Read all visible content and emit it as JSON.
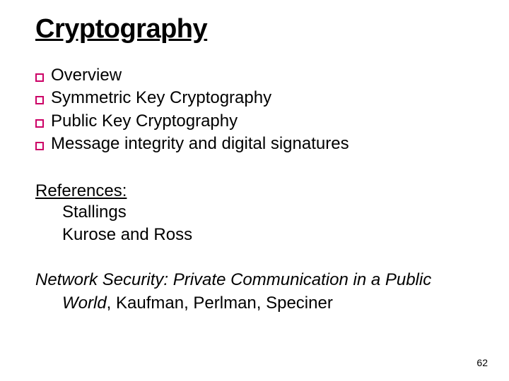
{
  "slide": {
    "title": "Cryptography",
    "bullets": [
      "Overview",
      "Symmetric Key Cryptography",
      "Public Key Cryptography",
      "Message integrity and digital signatures"
    ],
    "references_heading": "References:",
    "references": [
      "Stallings",
      "Kurose and Ross"
    ],
    "citation_italic": "Network Security: Private Communication in a Public",
    "citation_line2_italic": "World",
    "citation_line2_plain": ", Kaufman, Perlman, Speciner",
    "page_number": "62"
  },
  "style": {
    "background_color": "#ffffff",
    "text_color": "#000000",
    "bullet_border_color": "#cc0066",
    "title_fontsize": 38,
    "body_fontsize": 24,
    "pagenum_fontsize": 14,
    "font_family": "Comic Sans MS"
  }
}
